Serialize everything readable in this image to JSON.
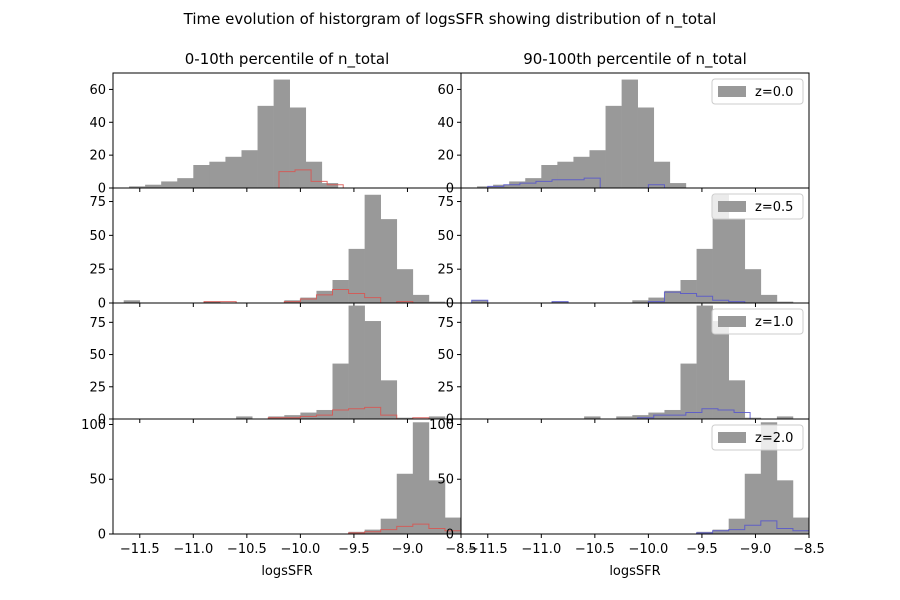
{
  "suptitle": "Time evolution of historgram of logsSFR showing distribution of n_total",
  "column_titles": [
    "0-10th percentile of n_total",
    "90-100th percentile of n_total"
  ],
  "xlabel": "logsSFR",
  "colors": {
    "all": "#999999",
    "low": "#d9534f",
    "high": "#5555cc"
  },
  "chart_data": {
    "type": "histogram-grid",
    "title": "Time evolution of historgram of logsSFR showing distribution of n_total",
    "xlabel": "logsSFR",
    "xlim": [
      -11.75,
      -8.5
    ],
    "xticks": [
      -11.5,
      -11.0,
      -10.5,
      -10.0,
      -9.5,
      -9.0,
      -8.5
    ],
    "xtick_labels": [
      "−11.5",
      "−11.0",
      "−10.5",
      "−10.0",
      "−9.5",
      "−9.0",
      "−8.5"
    ],
    "bin_width": 0.15,
    "rows": [
      {
        "legend": "z=0.0",
        "ylim": [
          0,
          70
        ],
        "yticks": [
          0,
          20,
          40,
          60
        ],
        "all": {
          "bin_start": -11.6,
          "counts": [
            1,
            2,
            4,
            6,
            14,
            16,
            19,
            23,
            50,
            66,
            49,
            16,
            3
          ]
        },
        "low": {
          "bin_start": -10.5,
          "counts": [
            0,
            0,
            10,
            11,
            4,
            2
          ]
        },
        "high": {
          "bin_start": -11.5,
          "counts": [
            1,
            2,
            3,
            4,
            5,
            5,
            6,
            0,
            0,
            0,
            2,
            0
          ]
        }
      },
      {
        "legend": "z=0.5",
        "ylim": [
          0,
          85
        ],
        "yticks": [
          0,
          25,
          50,
          75
        ],
        "all": {
          "bin_start": -11.65,
          "counts": [
            2,
            0,
            0,
            0,
            0,
            1,
            0,
            0,
            0,
            0,
            2,
            4,
            9,
            17,
            40,
            80,
            62,
            25,
            6,
            1
          ]
        },
        "low": {
          "bin_start": -10.9,
          "counts": [
            1,
            1,
            0,
            0,
            0,
            1,
            3,
            6,
            10,
            7,
            4,
            0,
            1
          ]
        },
        "high": {
          "bin_start": -11.65,
          "counts": [
            2,
            0,
            0,
            0,
            0,
            1,
            0,
            0,
            0,
            0,
            0,
            1,
            8,
            7,
            5,
            2,
            1
          ]
        }
      },
      {
        "legend": "z=1.0",
        "ylim": [
          0,
          90
        ],
        "yticks": [
          0,
          25,
          50,
          75
        ],
        "all": {
          "bin_start": -10.6,
          "counts": [
            2,
            0,
            2,
            3,
            5,
            7,
            43,
            88,
            76,
            30,
            1,
            0,
            2
          ]
        },
        "low": {
          "bin_start": -10.3,
          "counts": [
            1,
            1,
            2,
            3,
            7,
            8,
            9,
            3,
            0,
            1
          ]
        },
        "high": {
          "bin_start": -10.1,
          "counts": [
            1,
            3,
            3,
            5,
            8,
            7,
            5,
            0
          ]
        }
      },
      {
        "legend": "z=2.0",
        "ylim": [
          0,
          105
        ],
        "yticks": [
          0,
          50,
          100
        ],
        "all": {
          "bin_start": -9.55,
          "counts": [
            2,
            4,
            14,
            55,
            102,
            49,
            15
          ]
        },
        "low": {
          "bin_start": -9.55,
          "counts": [
            1,
            2,
            4,
            7,
            9,
            5,
            3
          ]
        },
        "high": {
          "bin_start": -9.55,
          "counts": [
            1,
            3,
            4,
            8,
            12,
            5,
            3
          ]
        }
      }
    ]
  }
}
